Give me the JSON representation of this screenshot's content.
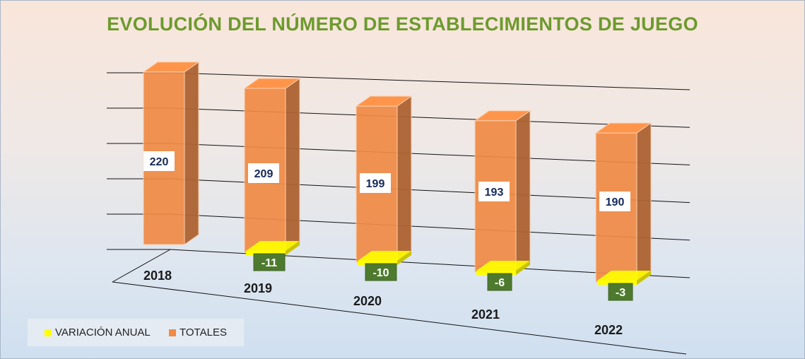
{
  "chart_data": {
    "type": "bar",
    "title": "EVOLUCIÓN DEL NÚMERO DE ESTABLECIMIENTOS DE JUEGO",
    "categories": [
      "2018",
      "2019",
      "2020",
      "2021",
      "2022"
    ],
    "series": [
      {
        "name": "VARIACIÓN ANUAL",
        "values": [
          null,
          -11,
          -10,
          -6,
          -3
        ],
        "color": "#ffff00",
        "label_bg": "#4e7a2e"
      },
      {
        "name": "TOTALES",
        "values": [
          220,
          209,
          199,
          193,
          190
        ],
        "color": "#f08a45",
        "label_bg": "#ffffff"
      }
    ],
    "ylim": [
      0,
      250
    ],
    "grid": true,
    "legend": "bottom-left",
    "three_d": true
  }
}
